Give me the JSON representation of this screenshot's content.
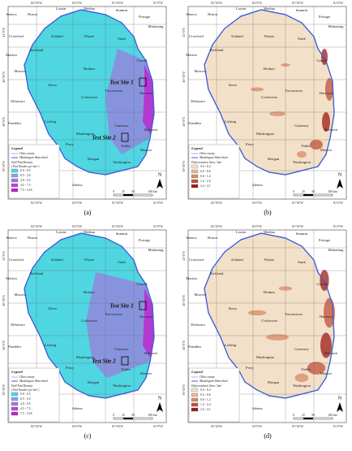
{
  "counties": [
    "Seneca",
    "Huron",
    "Lorain",
    "Medina",
    "Summit",
    "Portage",
    "Mahoning",
    "Crawford",
    "Ashland",
    "Wayne",
    "Stark",
    "Richland",
    "Marion",
    "Morrow",
    "Holmes",
    "Tuscarawas",
    "Carroll",
    "Knox",
    "Harrison",
    "Coshocton",
    "Delaware",
    "Licking",
    "Guernsey",
    "Belmont",
    "Muskingum",
    "Franklin",
    "Perry",
    "Noble",
    "Monroe",
    "Morgan",
    "Washington",
    "Athens"
  ],
  "lon_labels": [
    "82°30'W",
    "82°0'W",
    "81°30'W",
    "81°0'W"
  ],
  "lat_labels": [
    "41°0'N",
    "40°30'N",
    "40°0'N",
    "39°30'N"
  ],
  "scale_labels": [
    "0",
    "25",
    "50",
    "100 km"
  ],
  "north": "N",
  "legend": {
    "title": "Legend",
    "items": [
      "Ohio county",
      "Muskingum Watershed"
    ]
  },
  "panels": [
    {
      "caption": "(a)",
      "test_sites": [
        "Test Site 1",
        "Test Site 2"
      ],
      "legend_title": "Well Pad Density",
      "legend_unit": "( Pad Number per km² )",
      "classes": [
        "0.0 - 0.5",
        "0.5 - 2.0",
        "2.0 - 4.5",
        "4.5 - 7.5",
        "7.5 - 14.8"
      ]
    },
    {
      "caption": "(b)",
      "legend_title": "Deforestation Area / km²",
      "classes": [
        "0.0 - 0.2",
        "0.2 - 0.6",
        "0.6 - 1.2",
        "1.2 - 2.4",
        "2.4 - 4.1"
      ]
    },
    {
      "caption": "(c)",
      "test_sites": [
        "Test Site 1",
        "Test Site 2"
      ],
      "legend_title": "Well Pad Density",
      "legend_unit": "( Pad Number per km² )",
      "classes": [
        "0.0 - 0.5",
        "0.5 - 2.0",
        "2.0 - 4.5",
        "4.5 - 7.5",
        "7.5 - 14.8"
      ]
    },
    {
      "caption": "(d)",
      "legend_title": "Deforestation Area / km²",
      "classes": [
        "0.0 - 0.2",
        "0.2 - 0.6",
        "0.6 - 1.2",
        "1.2 - 2.4",
        "2.4 - 4.1"
      ]
    }
  ]
}
